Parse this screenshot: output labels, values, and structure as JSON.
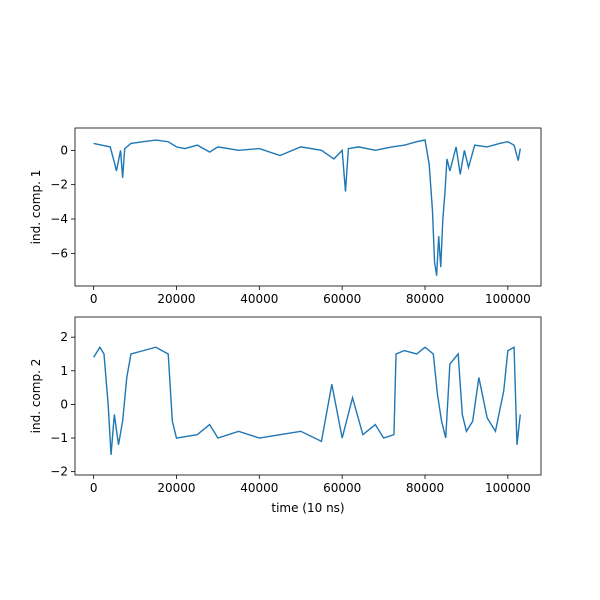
{
  "chart_data": [
    {
      "type": "line",
      "ylabel": "ind. comp. 1",
      "xlabel": "",
      "xlim": [
        -4500,
        108000
      ],
      "ylim": [
        -7.9,
        1.3
      ],
      "xticks": [
        0,
        20000,
        40000,
        60000,
        80000,
        100000
      ],
      "xtick_labels": [
        "0",
        "20000",
        "40000",
        "60000",
        "80000",
        "100000"
      ],
      "yticks": [
        0,
        -2,
        -4,
        -6
      ],
      "ytick_labels": [
        "0",
        "−2",
        "−4",
        "−6"
      ],
      "series": [
        {
          "color": "#1f77b4",
          "x": [
            0,
            2000,
            4000,
            5000,
            5500,
            6500,
            7000,
            7500,
            9000,
            12000,
            15000,
            18000,
            20000,
            22000,
            25000,
            28000,
            30000,
            35000,
            40000,
            45000,
            50000,
            55000,
            58000,
            60000,
            60800,
            61500,
            64000,
            68000,
            72000,
            75000,
            78000,
            80000,
            81000,
            81800,
            82300,
            82800,
            83300,
            83800,
            84300,
            84800,
            85300,
            86000,
            87500,
            88500,
            89500,
            90500,
            92000,
            95000,
            98000,
            100000,
            101500,
            102500,
            103000
          ],
          "y": [
            0.4,
            0.3,
            0.2,
            -0.7,
            -1.2,
            0.0,
            -1.6,
            0.1,
            0.4,
            0.5,
            0.6,
            0.5,
            0.2,
            0.1,
            0.3,
            -0.1,
            0.2,
            0.0,
            0.1,
            -0.3,
            0.2,
            0.0,
            -0.5,
            0.0,
            -2.4,
            0.1,
            0.2,
            0.0,
            0.2,
            0.3,
            0.5,
            0.6,
            -0.8,
            -3.5,
            -6.5,
            -7.3,
            -5.0,
            -6.8,
            -4.0,
            -2.5,
            -0.5,
            -1.2,
            0.2,
            -1.4,
            0.0,
            -1.0,
            0.3,
            0.2,
            0.4,
            0.5,
            0.3,
            -0.6,
            0.1
          ]
        }
      ]
    },
    {
      "type": "line",
      "ylabel": "ind. comp. 2",
      "xlabel": "time (10 ns)",
      "xlim": [
        -4500,
        108000
      ],
      "ylim": [
        -2.1,
        2.6
      ],
      "xticks": [
        0,
        20000,
        40000,
        60000,
        80000,
        100000
      ],
      "xtick_labels": [
        "0",
        "20000",
        "40000",
        "60000",
        "80000",
        "100000"
      ],
      "yticks": [
        2,
        1,
        0,
        -1,
        -2
      ],
      "ytick_labels": [
        "2",
        "1",
        "0",
        "−1",
        "−2"
      ],
      "series": [
        {
          "color": "#1f77b4",
          "x": [
            0,
            1500,
            2500,
            3500,
            4200,
            5000,
            6000,
            7000,
            8000,
            9000,
            12000,
            15000,
            18000,
            19000,
            20000,
            25000,
            28000,
            30000,
            35000,
            40000,
            45000,
            50000,
            55000,
            57500,
            60000,
            62500,
            65000,
            68000,
            70000,
            72500,
            73000,
            75000,
            78000,
            80000,
            82000,
            83000,
            84000,
            85000,
            86000,
            88000,
            89000,
            90000,
            91500,
            93000,
            95000,
            97000,
            99000,
            100000,
            101500,
            102200,
            103000
          ],
          "y": [
            1.4,
            1.7,
            1.5,
            0.0,
            -1.5,
            -0.3,
            -1.2,
            -0.5,
            0.8,
            1.5,
            1.6,
            1.7,
            1.5,
            -0.5,
            -1.0,
            -0.9,
            -0.6,
            -1.0,
            -0.8,
            -1.0,
            -0.9,
            -0.8,
            -1.1,
            0.6,
            -1.0,
            0.2,
            -0.9,
            -0.6,
            -1.0,
            -0.9,
            1.5,
            1.6,
            1.5,
            1.7,
            1.5,
            0.3,
            -0.5,
            -1.0,
            1.2,
            1.5,
            -0.3,
            -0.8,
            -0.5,
            0.8,
            -0.4,
            -0.8,
            0.4,
            1.6,
            1.7,
            -1.2,
            -0.3
          ]
        }
      ]
    }
  ]
}
